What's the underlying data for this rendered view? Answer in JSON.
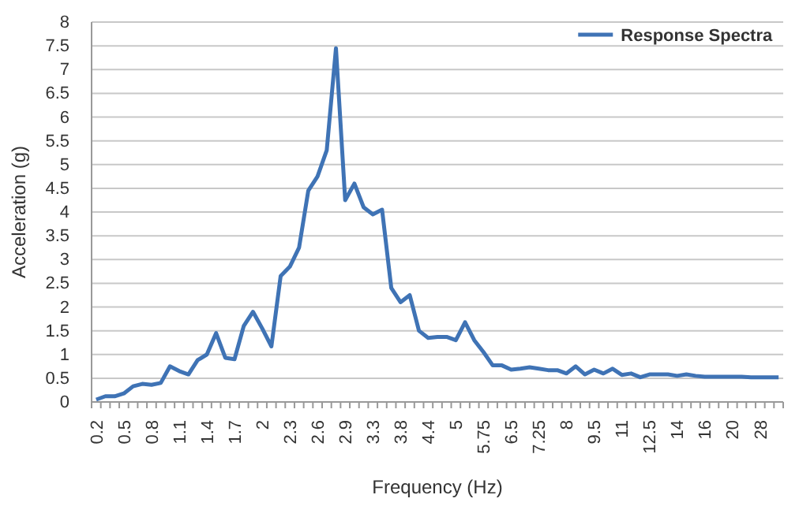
{
  "chart_data": {
    "type": "line",
    "xlabel": "Frequency (Hz)",
    "ylabel": "Acceleration (g)",
    "categories": [
      "0.2",
      null,
      null,
      "0.5",
      null,
      null,
      "0.8",
      null,
      null,
      "1.1",
      null,
      null,
      "1.4",
      null,
      null,
      "1.7",
      null,
      null,
      "2",
      null,
      null,
      "2.3",
      null,
      null,
      "2.6",
      null,
      null,
      "2.9",
      null,
      null,
      "3.3",
      null,
      null,
      "3.8",
      null,
      null,
      "4.4",
      null,
      null,
      "5",
      null,
      null,
      "5.75",
      null,
      null,
      "6.5",
      null,
      null,
      "7.25",
      null,
      null,
      "8",
      null,
      null,
      "9.5",
      null,
      null,
      "11",
      null,
      null,
      "12.5",
      null,
      null,
      "14",
      null,
      null,
      "16",
      null,
      null,
      "20",
      null,
      null,
      "28",
      null,
      null
    ],
    "series": [
      {
        "name": "Response Spectra",
        "color": "#3f73b5",
        "values": [
          0.05,
          0.12,
          0.12,
          0.18,
          0.33,
          0.38,
          0.36,
          0.4,
          0.75,
          0.65,
          0.58,
          0.88,
          1.0,
          1.45,
          0.93,
          0.9,
          1.6,
          1.9,
          1.55,
          1.17,
          2.65,
          2.85,
          3.25,
          4.45,
          4.75,
          5.3,
          7.45,
          4.25,
          4.6,
          4.1,
          3.95,
          4.05,
          2.4,
          2.1,
          2.25,
          1.5,
          1.35,
          1.37,
          1.37,
          1.3,
          1.68,
          1.3,
          1.05,
          0.77,
          0.77,
          0.68,
          0.7,
          0.73,
          0.7,
          0.67,
          0.67,
          0.6,
          0.75,
          0.58,
          0.68,
          0.6,
          0.7,
          0.57,
          0.6,
          0.52,
          0.58,
          0.58,
          0.58,
          0.55,
          0.58,
          0.55,
          0.53,
          0.53,
          0.53,
          0.53,
          0.53,
          0.52,
          0.52,
          0.52,
          0.52
        ]
      }
    ],
    "ylim": [
      0,
      8
    ],
    "yticks": [
      0,
      0.5,
      1,
      1.5,
      2,
      2.5,
      3,
      3.5,
      4,
      4.5,
      5,
      5.5,
      6,
      6.5,
      7,
      7.5,
      8
    ],
    "grid": "y",
    "legend": "top right",
    "marker": "none",
    "line_style": "solid"
  }
}
